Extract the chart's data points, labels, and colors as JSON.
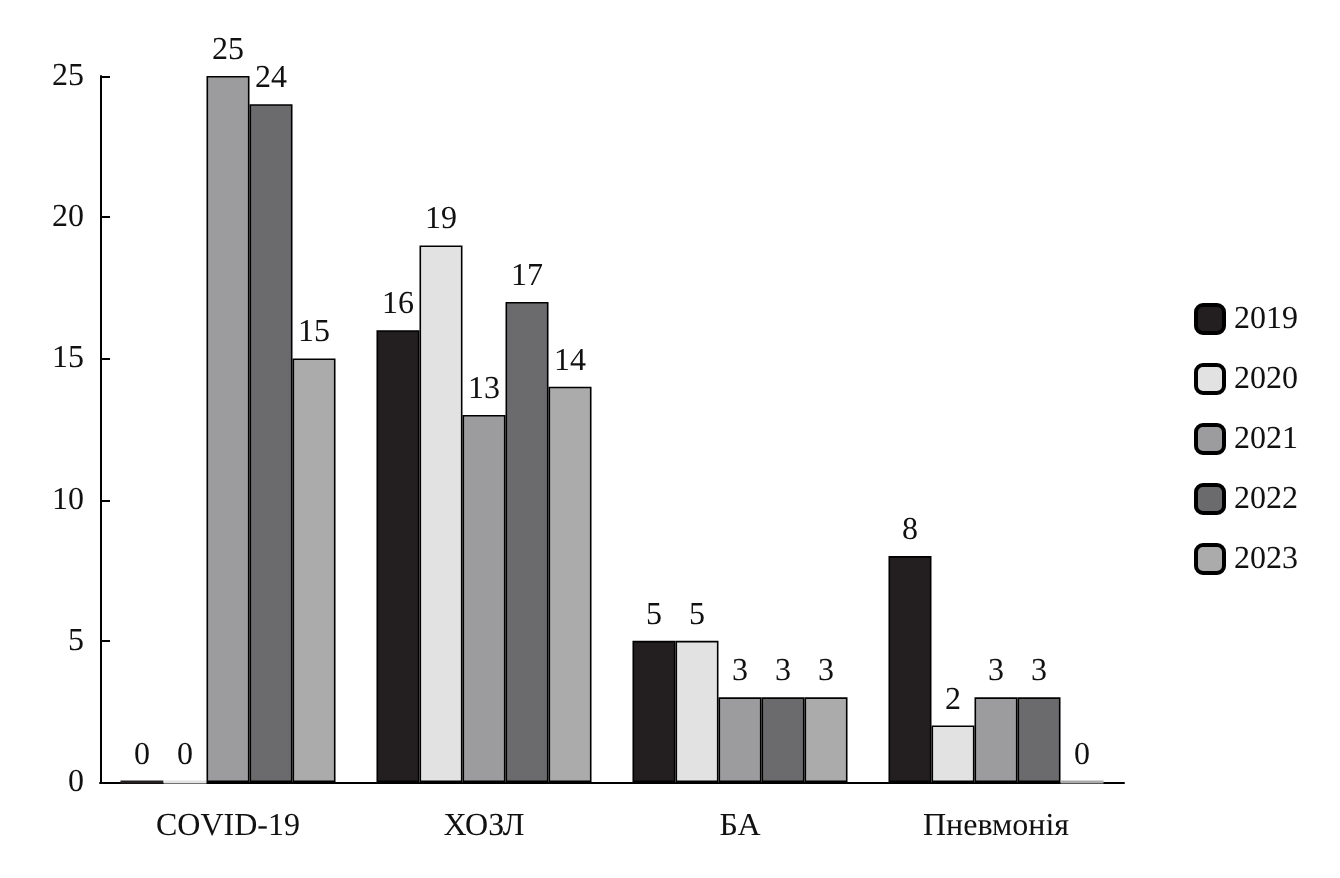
{
  "chart_data": {
    "type": "bar",
    "categories": [
      "COVID-19",
      "ХОЗЛ",
      "БА",
      "Пневмонія"
    ],
    "series": [
      {
        "name": "2019",
        "color": "#231f20",
        "values": [
          0,
          16,
          5,
          8
        ]
      },
      {
        "name": "2020",
        "color": "#e2e2e2",
        "values": [
          0,
          19,
          5,
          2
        ]
      },
      {
        "name": "2021",
        "color": "#9c9c9e",
        "values": [
          25,
          13,
          3,
          3
        ]
      },
      {
        "name": "2022",
        "color": "#6b6b6d",
        "values": [
          24,
          17,
          3,
          3
        ]
      },
      {
        "name": "2023",
        "color": "#ababab",
        "values": [
          15,
          14,
          3,
          0
        ]
      }
    ],
    "ylim": [
      0,
      25
    ],
    "yticks": [
      0,
      5,
      10,
      15,
      20,
      25
    ],
    "grid": false,
    "legend": "right",
    "data_labels": true
  }
}
